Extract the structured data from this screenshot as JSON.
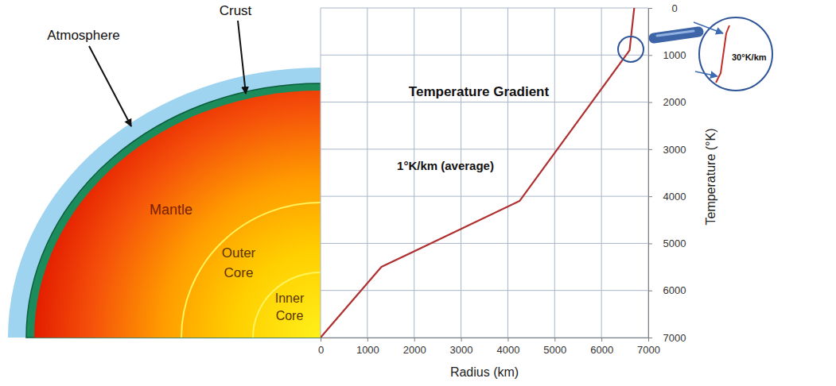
{
  "chart_data": {
    "type": "line",
    "title": "Temperature Gradient",
    "xlabel": "Radius (km)",
    "ylabel": "Temperature (°K)",
    "annotations": [
      "1°K/km (average)",
      "30°K/km"
    ],
    "x": [
      0,
      1300,
      4250,
      6600,
      6700
    ],
    "values": [
      7000,
      5500,
      4100,
      900,
      0
    ],
    "color": "#b03030",
    "xlim": [
      0,
      7000
    ],
    "xticks": [
      0,
      1000,
      2000,
      3000,
      4000,
      5000,
      6000,
      7000
    ],
    "ylim": [
      7000,
      0
    ],
    "yticks": [
      0,
      1000,
      2000,
      3000,
      4000,
      5000,
      6000,
      7000
    ],
    "grid": true
  },
  "diagram": {
    "layers": [
      "Atmosphere",
      "Crust",
      "Mantle",
      "Outer Core",
      "Inner Core"
    ]
  }
}
